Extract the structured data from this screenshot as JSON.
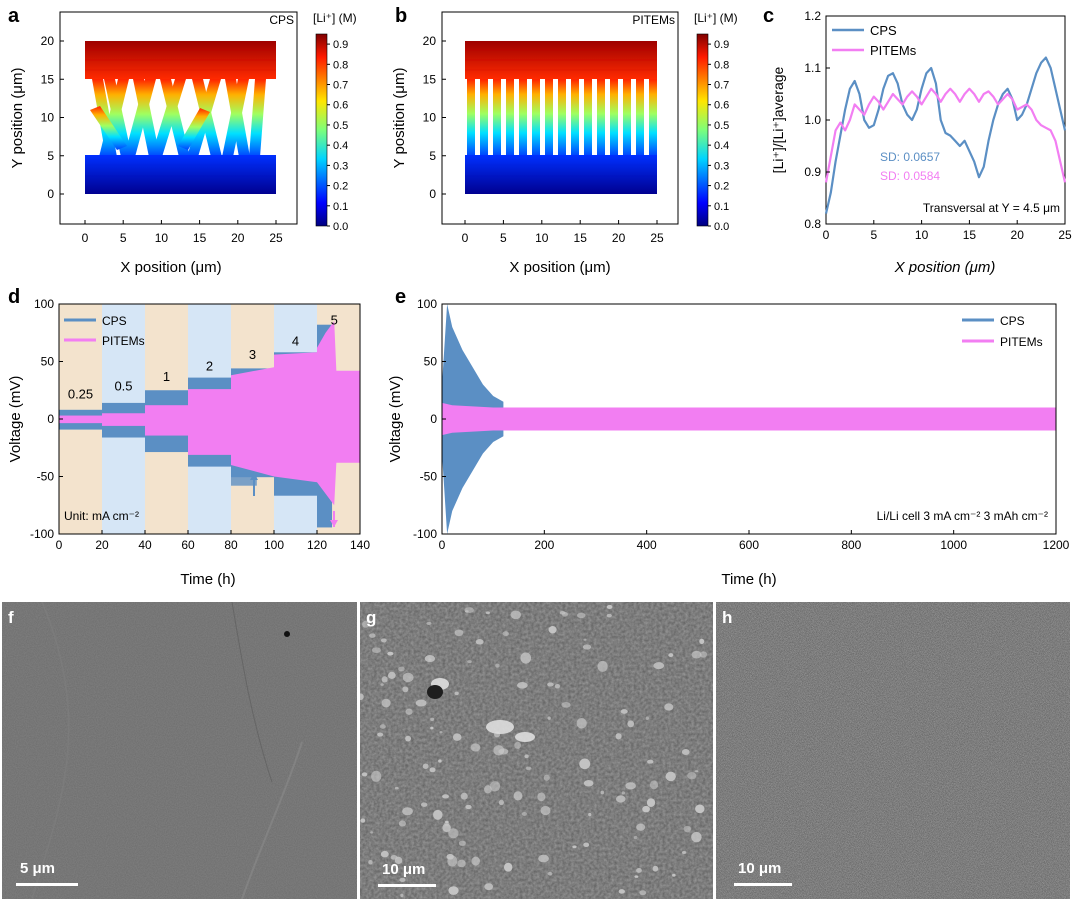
{
  "panels": {
    "a": {
      "letter": "a",
      "tag": "CPS",
      "xlabel": "X position (μm)",
      "ylabel": "Y position (μm)",
      "xticks": [
        0,
        5,
        10,
        15,
        20,
        25
      ],
      "yticks": [
        0,
        5,
        10,
        15,
        20
      ],
      "cbar_title": "[Li⁺] (M)",
      "cbar_ticks": [
        "0.0",
        "0.1",
        "0.2",
        "0.3",
        "0.4",
        "0.5",
        "0.6",
        "0.7",
        "0.8",
        "0.9"
      ]
    },
    "b": {
      "letter": "b",
      "tag": "PITEMs",
      "xlabel": "X position (μm)",
      "ylabel": "Y position (μm)",
      "xticks": [
        0,
        5,
        10,
        15,
        20,
        25
      ],
      "yticks": [
        0,
        5,
        10,
        15,
        20
      ],
      "cbar_title": "[Li⁺] (M)",
      "cbar_ticks": [
        "0.0",
        "0.1",
        "0.2",
        "0.3",
        "0.4",
        "0.5",
        "0.6",
        "0.7",
        "0.8",
        "0.9"
      ]
    },
    "c": {
      "letter": "c"
    },
    "d": {
      "letter": "d"
    },
    "e": {
      "letter": "e"
    },
    "f": {
      "letter": "f",
      "scale": "5 μm"
    },
    "g": {
      "letter": "g",
      "scale": "10 μm"
    },
    "h": {
      "letter": "h",
      "scale": "10 μm"
    }
  },
  "colors": {
    "cps": "#5b8fc4",
    "pitems": "#f27ef2",
    "band_tan": "#f3e3cd",
    "band_blue": "#d6e6f6",
    "sd_cps": "#5b8fc4",
    "sd_pitems": "#f27ef2"
  },
  "chart_data": [
    {
      "id": "c",
      "type": "line",
      "xlabel": "X position (μm)",
      "ylabel": "[Li⁺]/[Li⁺]average",
      "xlim": [
        0,
        25
      ],
      "ylim": [
        0.8,
        1.2
      ],
      "xticks": [
        0,
        5,
        10,
        15,
        20,
        25
      ],
      "yticks": [
        0.8,
        0.9,
        1.0,
        1.1,
        1.2
      ],
      "legend": "top-left",
      "annotations": [
        "SD: 0.0657",
        "SD: 0.0584",
        "Transversal at Y = 4.5 μm"
      ],
      "series": [
        {
          "name": "CPS",
          "x": [
            0,
            0.5,
            1,
            1.5,
            2,
            2.5,
            3,
            3.5,
            4,
            4.5,
            5,
            5.5,
            6,
            6.5,
            7,
            7.5,
            8,
            8.5,
            9,
            9.5,
            10,
            10.5,
            11,
            11.5,
            12,
            12.5,
            13,
            13.5,
            14,
            14.5,
            15,
            15.5,
            16,
            16.5,
            17,
            17.5,
            18,
            18.5,
            19,
            19.5,
            20,
            20.5,
            21,
            21.5,
            22,
            22.5,
            23,
            23.5,
            24,
            24.5,
            25
          ],
          "y": [
            0.82,
            0.86,
            0.92,
            0.97,
            1.02,
            1.06,
            1.075,
            1.05,
            1.0,
            0.985,
            0.99,
            1.02,
            1.06,
            1.085,
            1.09,
            1.07,
            1.03,
            1.01,
            1.0,
            1.02,
            1.06,
            1.09,
            1.1,
            1.07,
            1.0,
            0.975,
            0.97,
            0.96,
            0.95,
            0.96,
            0.94,
            0.92,
            0.89,
            0.91,
            0.96,
            1.0,
            1.03,
            1.05,
            1.06,
            1.04,
            1.0,
            1.01,
            1.03,
            1.06,
            1.09,
            1.11,
            1.12,
            1.1,
            1.06,
            1.02,
            0.98
          ]
        },
        {
          "name": "PITEMs",
          "x": [
            0,
            0.5,
            1,
            1.5,
            2,
            2.5,
            3,
            3.5,
            4,
            4.5,
            5,
            5.5,
            6,
            6.5,
            7,
            7.5,
            8,
            8.5,
            9,
            9.5,
            10,
            10.5,
            11,
            11.5,
            12,
            12.5,
            13,
            13.5,
            14,
            14.5,
            15,
            15.5,
            16,
            16.5,
            17,
            17.5,
            18,
            18.5,
            19,
            19.5,
            20,
            20.5,
            21,
            21.5,
            22,
            22.5,
            23,
            23.5,
            24,
            24.5,
            25
          ],
          "y": [
            0.88,
            0.93,
            0.98,
            0.995,
            0.98,
            1.0,
            1.03,
            1.02,
            1.01,
            1.03,
            1.045,
            1.035,
            1.02,
            1.035,
            1.05,
            1.04,
            1.03,
            1.045,
            1.055,
            1.045,
            1.03,
            1.045,
            1.06,
            1.05,
            1.035,
            1.05,
            1.06,
            1.05,
            1.035,
            1.05,
            1.06,
            1.05,
            1.035,
            1.05,
            1.055,
            1.045,
            1.03,
            1.04,
            1.05,
            1.04,
            1.02,
            1.025,
            1.03,
            1.02,
            1.0,
            0.99,
            0.985,
            0.98,
            0.96,
            0.92,
            0.88
          ]
        }
      ]
    },
    {
      "id": "d",
      "type": "line",
      "xlabel": "Time (h)",
      "ylabel": "Voltage (mV)",
      "xlim": [
        0,
        140
      ],
      "ylim": [
        -100,
        100
      ],
      "xticks": [
        0,
        20,
        40,
        60,
        80,
        100,
        120,
        140
      ],
      "yticks": [
        -100,
        -50,
        0,
        50,
        100
      ],
      "legend": "top-left",
      "unit_note": "Unit: mA cm⁻²",
      "current_densities": [
        "0.25",
        "0.5",
        "1",
        "2",
        "3",
        "4",
        "5"
      ],
      "segments": [
        [
          0,
          20
        ],
        [
          20,
          40
        ],
        [
          40,
          60
        ],
        [
          60,
          80
        ],
        [
          80,
          100
        ],
        [
          100,
          120
        ],
        [
          120,
          140
        ]
      ],
      "series": [
        {
          "name": "CPS",
          "amplitude_mV": [
            8,
            14,
            25,
            36,
            44,
            58,
            82
          ]
        },
        {
          "name": "PITEMs",
          "amplitude_mV": [
            3,
            5,
            12,
            26,
            40,
            55,
            45
          ]
        }
      ]
    },
    {
      "id": "e",
      "type": "line",
      "xlabel": "Time (h)",
      "ylabel": "Voltage (mV)",
      "xlim": [
        0,
        1200
      ],
      "ylim": [
        -100,
        100
      ],
      "xticks": [
        0,
        200,
        400,
        600,
        800,
        1000,
        1200
      ],
      "yticks": [
        -100,
        -50,
        0,
        50,
        100
      ],
      "legend": "top-right",
      "note": "Li/Li cell 3 mA cm⁻² 3 mAh cm⁻²",
      "series": [
        {
          "name": "CPS",
          "t_h": [
            0,
            10,
            20,
            40,
            60,
            80,
            100,
            120
          ],
          "amplitude_mV": [
            30,
            100,
            80,
            60,
            45,
            30,
            20,
            15
          ]
        },
        {
          "name": "PITEMs",
          "t_h": [
            0,
            20,
            100,
            1200
          ],
          "amplitude_mV": [
            14,
            12,
            10,
            10
          ]
        }
      ]
    }
  ]
}
